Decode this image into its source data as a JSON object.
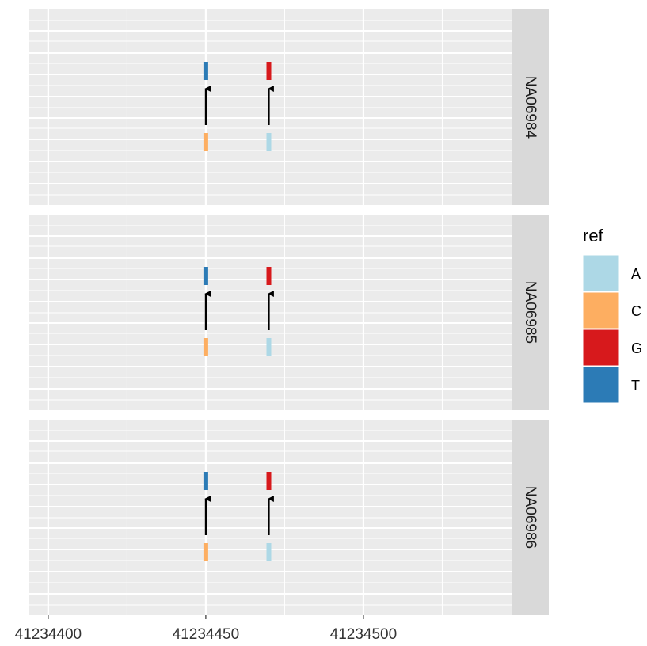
{
  "chart_data": {
    "type": "genomic-variant-tracks",
    "xlim": [
      41234394,
      41234547
    ],
    "x_ticks": [
      41234400,
      41234450,
      41234500
    ],
    "x_tick_labels": [
      "41234400",
      "41234450",
      "41234500"
    ],
    "grid": true,
    "legend_position": "right",
    "legend": {
      "title": "ref",
      "entries": [
        {
          "label": "A",
          "color": "#add8e6"
        },
        {
          "label": "C",
          "color": "#fdae61"
        },
        {
          "label": "G",
          "color": "#d7191c"
        },
        {
          "label": "T",
          "color": "#2c7bb6"
        }
      ]
    },
    "facets": [
      {
        "label": "NA06984",
        "variants": [
          {
            "position": 41234450,
            "ref": "C",
            "alt": "T"
          },
          {
            "position": 41234470,
            "ref": "A",
            "alt": "G"
          }
        ]
      },
      {
        "label": "NA06985",
        "variants": [
          {
            "position": 41234450,
            "ref": "C",
            "alt": "T"
          },
          {
            "position": 41234470,
            "ref": "A",
            "alt": "G"
          }
        ]
      },
      {
        "label": "NA06986",
        "variants": [
          {
            "position": 41234450,
            "ref": "C",
            "alt": "T"
          },
          {
            "position": 41234470,
            "ref": "A",
            "alt": "G"
          }
        ]
      }
    ]
  }
}
